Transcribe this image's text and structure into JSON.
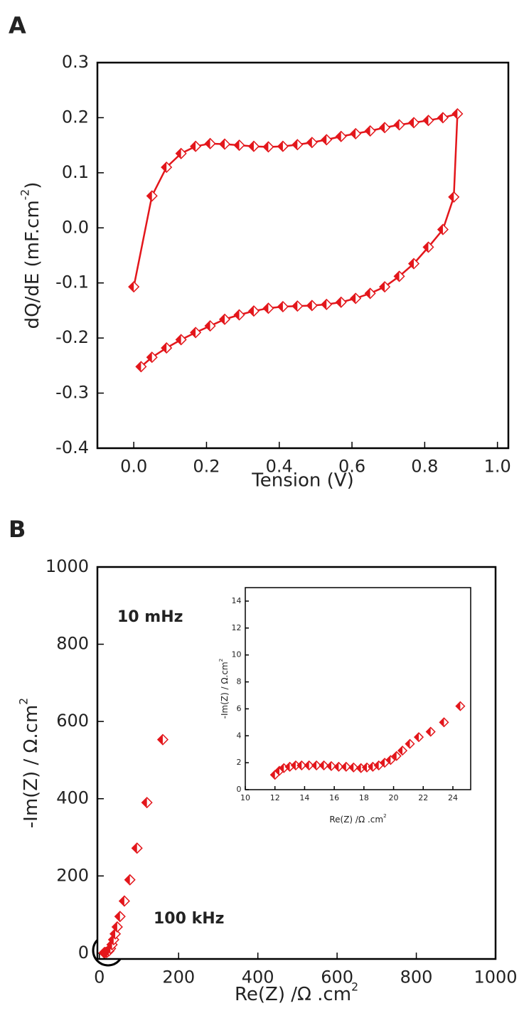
{
  "chart_data": [
    {
      "type": "line",
      "panel": "A",
      "color": "#e3161b",
      "xlabel": "Tension (V)",
      "ylabel": {
        "text": "dQ/dE (mF.cm",
        "sup": "-2",
        "tail": ")"
      },
      "xlim": [
        -0.1,
        1.03
      ],
      "ylim": [
        -0.4,
        0.3
      ],
      "xticks": [
        {
          "value": 0,
          "label": "0.0"
        },
        0.2,
        0.4,
        0.6,
        0.8,
        {
          "value": 1,
          "label": "1.0"
        }
      ],
      "yticks": [
        -0.4,
        -0.3,
        -0.2,
        -0.1,
        {
          "value": 0,
          "label": "0.0"
        },
        0.1,
        0.2,
        0.3
      ],
      "x": [
        0,
        0.05,
        0.09,
        0.13,
        0.17,
        0.21,
        0.25,
        0.29,
        0.33,
        0.37,
        0.41,
        0.45,
        0.49,
        0.53,
        0.57,
        0.61,
        0.65,
        0.69,
        0.73,
        0.77,
        0.81,
        0.85,
        0.89,
        0.88,
        0.85,
        0.81,
        0.77,
        0.73,
        0.69,
        0.65,
        0.61,
        0.57,
        0.53,
        0.49,
        0.45,
        0.41,
        0.37,
        0.33,
        0.29,
        0.25,
        0.21,
        0.17,
        0.13,
        0.09,
        0.05,
        0.02
      ],
      "values": [
        -0.107,
        0.058,
        0.11,
        0.135,
        0.148,
        0.153,
        0.152,
        0.15,
        0.148,
        0.147,
        0.148,
        0.151,
        0.155,
        0.16,
        0.166,
        0.171,
        0.176,
        0.182,
        0.187,
        0.191,
        0.195,
        0.2,
        0.207,
        0.056,
        -0.003,
        -0.035,
        -0.065,
        -0.088,
        -0.107,
        -0.119,
        -0.128,
        -0.135,
        -0.139,
        -0.141,
        -0.142,
        -0.143,
        -0.146,
        -0.151,
        -0.158,
        -0.166,
        -0.178,
        -0.19,
        -0.203,
        -0.218,
        -0.235,
        -0.252
      ]
    },
    {
      "type": "scatter",
      "panel": "B",
      "color": "#e3161b",
      "xlabel": {
        "text": "Re(Z) /Ω .cm",
        "sup": "2"
      },
      "ylabel": {
        "text": "-Im(Z) / Ω.cm",
        "sup": "2"
      },
      "annotations": [
        "10 mHz",
        "100 kHz"
      ],
      "xlim": [
        -5,
        1000
      ],
      "ylim": [
        -15,
        1000
      ],
      "xticks": [
        0,
        200,
        400,
        600,
        800,
        1000
      ],
      "yticks": [
        0,
        200,
        400,
        600,
        800,
        1000
      ],
      "x": [
        12,
        14,
        17,
        20,
        24,
        28,
        32,
        36,
        40,
        45,
        52,
        63,
        77,
        95,
        120,
        160
      ],
      "values": [
        1,
        2,
        2,
        3,
        6,
        12,
        22,
        35,
        50,
        68,
        95,
        135,
        190,
        272,
        390,
        553
      ]
    },
    {
      "type": "scatter",
      "color": "#e3161b",
      "xlabel": {
        "text": "Re(Z) /Ω .cm",
        "sup": "2"
      },
      "ylabel": {
        "text": "-Im(Z) / Ω.cm",
        "sup": "2"
      },
      "xlim": [
        10,
        25.2
      ],
      "ylim": [
        0,
        15
      ],
      "xticks": [
        10,
        12,
        14,
        16,
        18,
        20,
        22,
        24
      ],
      "yticks": [
        0,
        2,
        4,
        6,
        8,
        10,
        12,
        14
      ],
      "x": [
        12,
        12.3,
        12.6,
        13,
        13.4,
        13.8,
        14.3,
        14.8,
        15.3,
        15.8,
        16.3,
        16.8,
        17.3,
        17.8,
        18.2,
        18.6,
        19,
        19.4,
        19.8,
        20.2,
        20.6,
        21.1,
        21.7,
        22.5,
        23.4,
        24.5
      ],
      "values": [
        1.1,
        1.4,
        1.6,
        1.7,
        1.8,
        1.8,
        1.8,
        1.8,
        1.8,
        1.75,
        1.7,
        1.7,
        1.65,
        1.6,
        1.65,
        1.7,
        1.8,
        2,
        2.2,
        2.5,
        2.9,
        3.4,
        3.9,
        4.3,
        5,
        6.2
      ]
    }
  ]
}
